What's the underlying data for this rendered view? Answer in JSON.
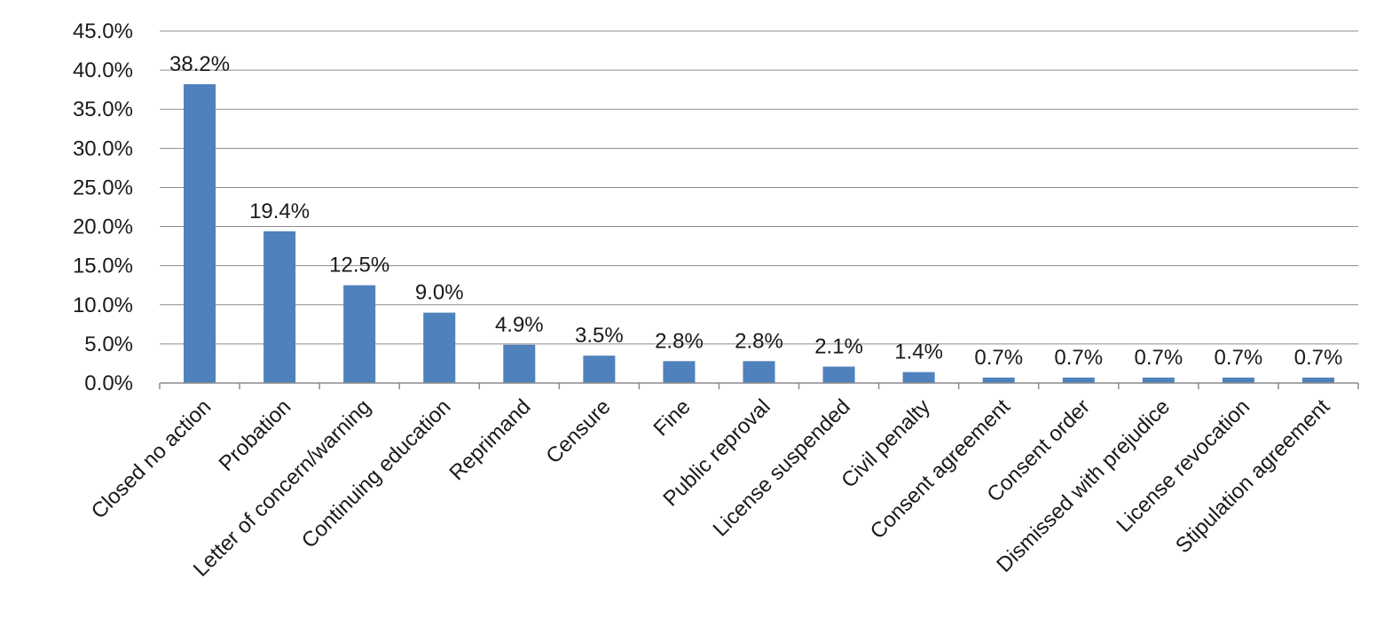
{
  "chart_data": {
    "type": "bar",
    "title": "",
    "xlabel": "",
    "ylabel": "",
    "ylim": [
      0,
      45
    ],
    "ytick_step": 5,
    "ytick_format": "percent-1dp",
    "grid": true,
    "legend": "none",
    "bar_color": "#4F81BD",
    "categories": [
      "Closed no action",
      "Probation",
      "Letter of concern/warning",
      "Continuing education",
      "Reprimand",
      "Censure",
      "Fine",
      "Public reproval",
      "License suspended",
      "Civil penalty",
      "Consent agreement",
      "Consent order",
      "Dismissed with prejudice",
      "License revocation",
      "Stipulation agreement"
    ],
    "values": [
      38.2,
      19.4,
      12.5,
      9.0,
      4.9,
      3.5,
      2.8,
      2.8,
      2.1,
      1.4,
      0.7,
      0.7,
      0.7,
      0.7,
      0.7
    ],
    "data_labels": [
      "38.2%",
      "19.4%",
      "12.5%",
      "9.0%",
      "4.9%",
      "3.5%",
      "2.8%",
      "2.8%",
      "2.1%",
      "1.4%",
      "0.7%",
      "0.7%",
      "0.7%",
      "0.7%",
      "0.7%"
    ],
    "ytick_labels": [
      "0.0%",
      "5.0%",
      "10.0%",
      "15.0%",
      "20.0%",
      "25.0%",
      "30.0%",
      "35.0%",
      "40.0%",
      "45.0%"
    ]
  }
}
